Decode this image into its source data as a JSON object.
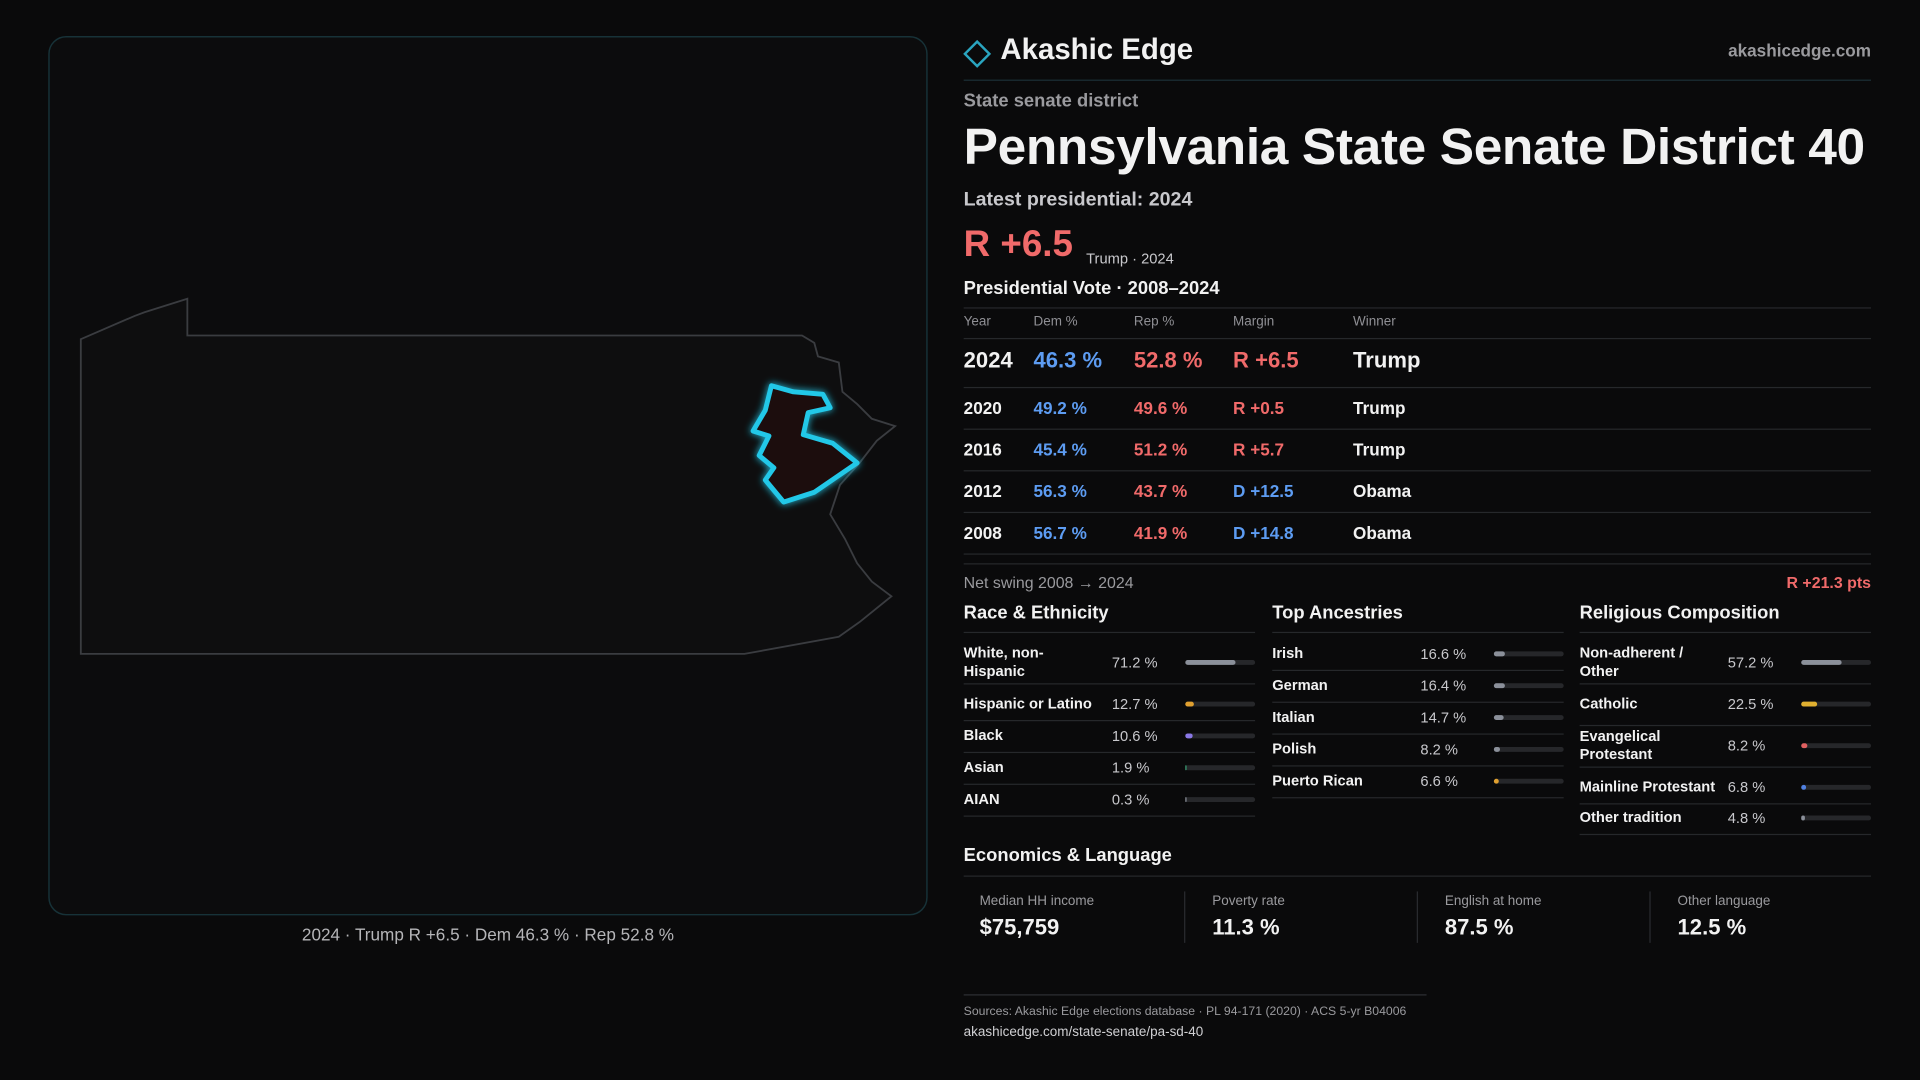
{
  "brand": {
    "name": "Akashic Edge",
    "site": "akashicedge.com"
  },
  "map": {
    "caption": "2024 · Trump R +6.5 · Dem 46.3 % · Rep 52.8 %"
  },
  "district": {
    "kicker": "State senate district",
    "title": "Pennsylvania State Senate District 40",
    "latest": "Latest presidential: 2024",
    "margin": "R +6.5",
    "margin_note": "Trump · 2024"
  },
  "presidential": {
    "title": "Presidential Vote · 2008–2024",
    "columns": [
      "Year",
      "Dem %",
      "Rep %",
      "Margin",
      "Winner"
    ],
    "rows": [
      [
        "2024",
        "46.3 %",
        "52.8 %",
        "R +6.5",
        "Trump"
      ],
      [
        "2020",
        "49.2 %",
        "49.6 %",
        "R +0.5",
        "Trump"
      ],
      [
        "2016",
        "45.4 %",
        "51.2 %",
        "R +5.7",
        "Trump"
      ],
      [
        "2012",
        "56.3 %",
        "43.7 %",
        "D +12.5",
        "Obama"
      ],
      [
        "2008",
        "56.7 %",
        "41.9 %",
        "D +14.8",
        "Obama"
      ]
    ]
  },
  "swing": {
    "label": "Net swing 2008 → 2024",
    "value": "R +21.3 pts"
  },
  "demographics": [
    {
      "title": "Race & Ethnicity",
      "items": [
        {
          "label": "White, non-Hispanic",
          "value": 71.2,
          "value_label": "71.2 %",
          "color": "#8b909a"
        },
        {
          "label": "Hispanic or Latino",
          "value": 12.7,
          "value_label": "12.7 %",
          "color": "#e0a030"
        },
        {
          "label": "Black",
          "value": 10.6,
          "value_label": "10.6 %",
          "color": "#8a78e6"
        },
        {
          "label": "Asian",
          "value": 1.9,
          "value_label": "1.9 %",
          "color": "#3aa074"
        },
        {
          "label": "AIAN",
          "value": 0.3,
          "value_label": "0.3 %",
          "color": "#8b909a"
        }
      ]
    },
    {
      "title": "Top Ancestries",
      "items": [
        {
          "label": "Irish",
          "value": 16.6,
          "value_label": "16.6 %",
          "color": "#8b909a"
        },
        {
          "label": "German",
          "value": 16.4,
          "value_label": "16.4 %",
          "color": "#8b909a"
        },
        {
          "label": "Italian",
          "value": 14.7,
          "value_label": "14.7 %",
          "color": "#8b909a"
        },
        {
          "label": "Polish",
          "value": 8.2,
          "value_label": "8.2 %",
          "color": "#8b909a"
        },
        {
          "label": "Puerto Rican",
          "value": 6.6,
          "value_label": "6.6 %",
          "color": "#e0a030"
        }
      ]
    },
    {
      "title": "Religious Composition",
      "items": [
        {
          "label": "Non-adherent / Other",
          "value": 57.2,
          "value_label": "57.2 %",
          "color": "#8b909a"
        },
        {
          "label": "Catholic",
          "value": 22.5,
          "value_label": "22.5 %",
          "color": "#e0b030"
        },
        {
          "label": "Evangelical Protestant",
          "value": 8.2,
          "value_label": "8.2 %",
          "color": "#e06060"
        },
        {
          "label": "Mainline Protestant",
          "value": 6.8,
          "value_label": "6.8 %",
          "color": "#5080e0"
        },
        {
          "label": "Other tradition",
          "value": 4.8,
          "value_label": "4.8 %",
          "color": "#8b909a"
        }
      ]
    }
  ],
  "economics": {
    "title": "Economics & Language",
    "cards": [
      {
        "label": "Median HH income",
        "value": "$75,759"
      },
      {
        "label": "Poverty rate",
        "value": "11.3 %"
      },
      {
        "label": "English at home",
        "value": "87.5 %"
      },
      {
        "label": "Other language",
        "value": "12.5 %"
      }
    ]
  },
  "sources": {
    "text": "Sources: Akashic Edge elections database · PL 94-171 (2020) · ACS 5-yr B04006",
    "url": "akashicedge.com/state-senate/pa-sd-40"
  }
}
